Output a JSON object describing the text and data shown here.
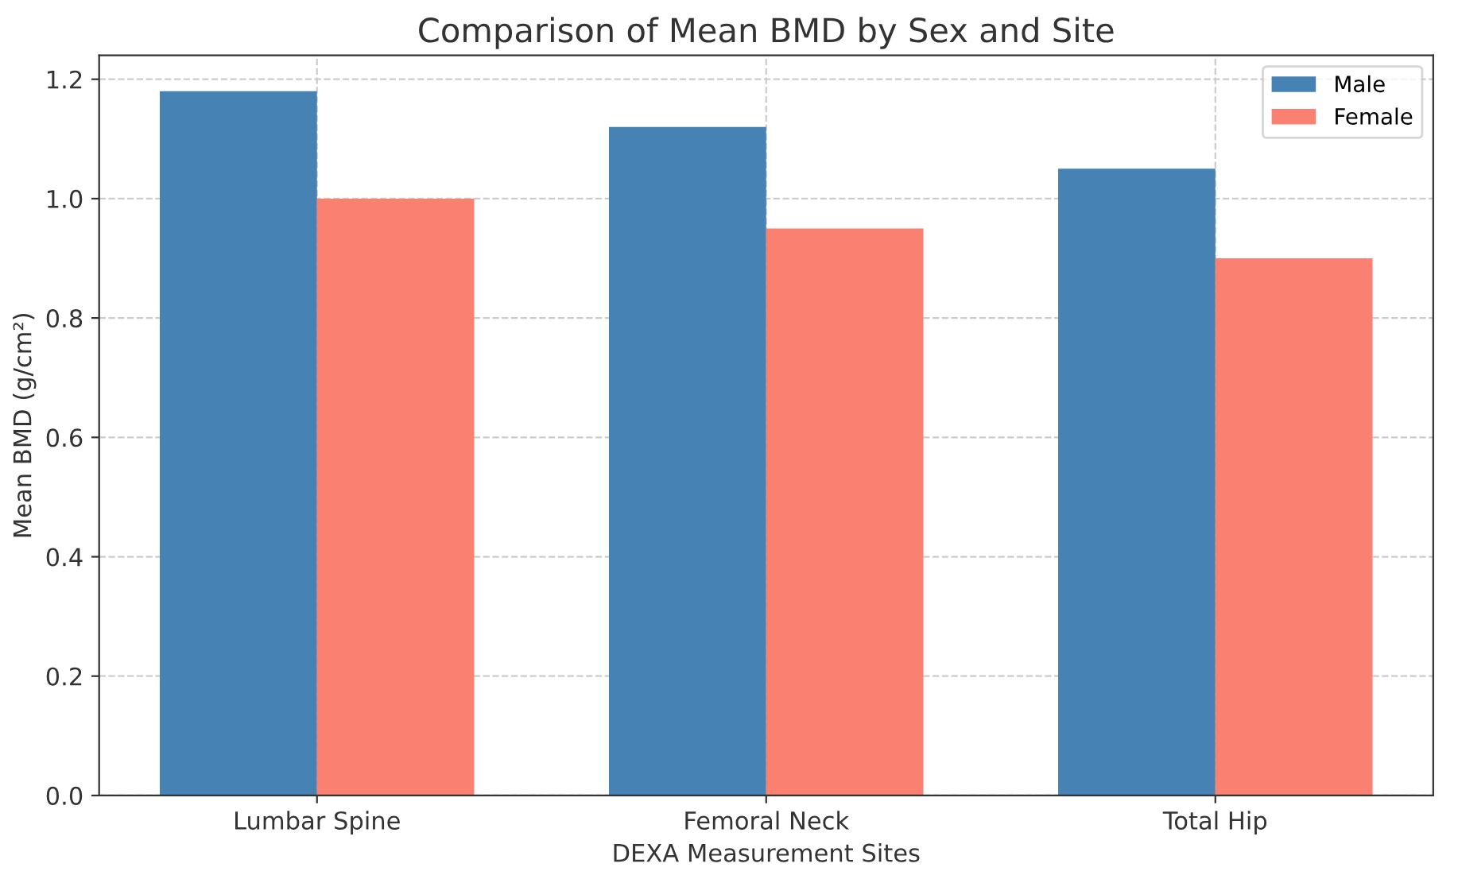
{
  "chart_data": {
    "type": "bar",
    "title": "Comparison of Mean BMD by Sex and Site",
    "xlabel": "DEXA Measurement Sites",
    "ylabel": "Mean BMD (g/cm²)",
    "categories": [
      "Lumbar Spine",
      "Femoral Neck",
      "Total Hip"
    ],
    "series": [
      {
        "name": "Male",
        "color": "#4682b4",
        "values": [
          1.18,
          1.12,
          1.05
        ]
      },
      {
        "name": "Female",
        "color": "#fa8072",
        "values": [
          1.0,
          0.95,
          0.9
        ]
      }
    ],
    "ylim": [
      0,
      1.24
    ],
    "yticks": [
      {
        "value": 0,
        "label": "0.0"
      },
      0.2,
      0.4,
      0.6,
      0.8,
      {
        "value": 1,
        "label": "1.0"
      },
      1.2
    ],
    "grid": true,
    "legend": "top right"
  }
}
